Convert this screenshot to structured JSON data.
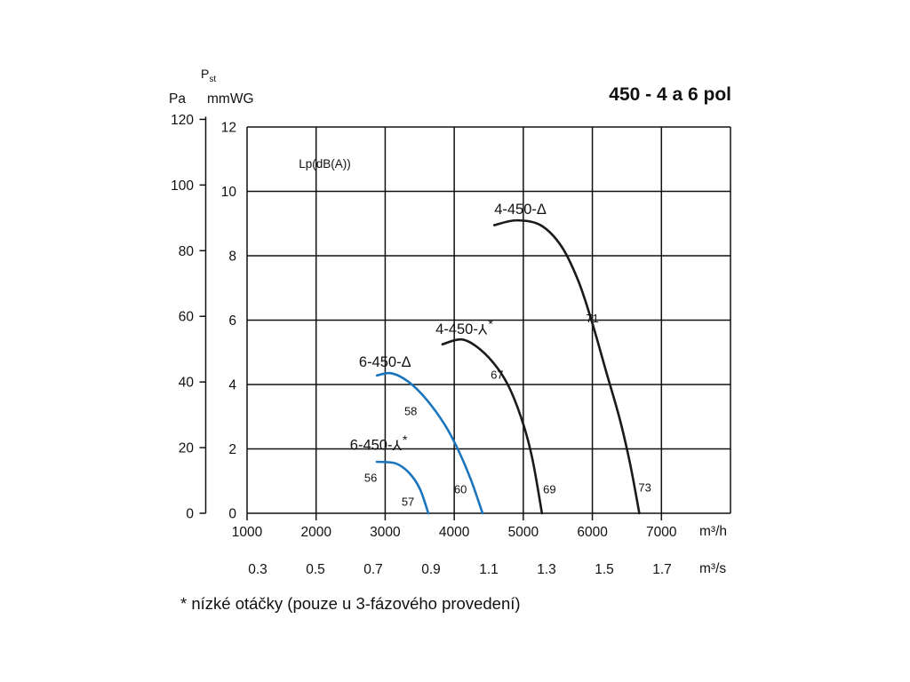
{
  "title": "450 - 4 a 6 pol",
  "footnote": "* nízké otáčky (pouze u 3-fázového provedení)",
  "axis_headers": {
    "pst_main": "P",
    "pst_sub": "st",
    "left_unit_pa": "Pa",
    "left_unit_mmwg": "mmWG",
    "x_unit_m3h": "m³/h",
    "x_unit_m3s": "m³/s"
  },
  "chart_data": {
    "type": "line",
    "title": "450 - 4 a 6 pol",
    "description": "Fan performance curves: static pressure vs air flow for models 4-450 and 6-450 in delta and star (low speed) wiring, with sound level labels in dB(A).",
    "grid": true,
    "x_axis": {
      "label_primary": "m³/h",
      "ticks_m3h": [
        1000,
        2000,
        3000,
        4000,
        5000,
        6000,
        7000
      ],
      "label_secondary": "m³/s",
      "ticks_m3s": [
        "0.3",
        "0.5",
        "0.7",
        "0.9",
        "1.1",
        "1.3",
        "1.5",
        "1.7"
      ],
      "range_m3h": [
        1000,
        8000
      ]
    },
    "y_axis": {
      "label_pst": "Pst",
      "label_pa": "Pa",
      "ticks_pa": [
        0,
        20,
        40,
        60,
        80,
        100,
        120
      ],
      "label_mmwg": "mmWG",
      "ticks_mmwg": [
        0,
        2,
        4,
        6,
        8,
        10,
        12
      ],
      "range_mmwg": [
        0,
        12
      ]
    },
    "noise_annotation": {
      "text": "Lp(dB(A))",
      "m3h": 1750,
      "mmwg": 10.73
    },
    "colors": {
      "black_series": "#1a1a1a",
      "blue_series": "#1b75bc"
    },
    "series": [
      {
        "name": "4-450-Δ",
        "label": {
          "prefix": "4-450-",
          "symbol": "delta",
          "star": false,
          "m3h": 4580,
          "mmwg": 9.3
        },
        "color_key": "black_series",
        "points": [
          [
            4580,
            8.95
          ],
          [
            4900,
            9.1
          ],
          [
            5250,
            8.95
          ],
          [
            5550,
            8.3
          ],
          [
            5800,
            7.2
          ],
          [
            6000,
            5.9
          ],
          [
            6200,
            4.4
          ],
          [
            6400,
            2.9
          ],
          [
            6550,
            1.5
          ],
          [
            6680,
            0
          ]
        ]
      },
      {
        "name": "4-450-Y*",
        "label": {
          "prefix": "4-450-",
          "symbol": "wye",
          "star": true,
          "m3h": 3730,
          "mmwg": 5.57
        },
        "color_key": "black_series",
        "points": [
          [
            3830,
            5.25
          ],
          [
            4110,
            5.4
          ],
          [
            4370,
            5.1
          ],
          [
            4630,
            4.5
          ],
          [
            4820,
            3.8
          ],
          [
            5010,
            2.7
          ],
          [
            5140,
            1.6
          ],
          [
            5270,
            0
          ]
        ]
      },
      {
        "name": "6-450-Δ",
        "label": {
          "prefix": "6-450-",
          "symbol": "delta",
          "star": false,
          "m3h": 2620,
          "mmwg": 4.55
        },
        "color_key": "blue_series",
        "points": [
          [
            2880,
            4.28
          ],
          [
            3090,
            4.35
          ],
          [
            3340,
            4.08
          ],
          [
            3600,
            3.53
          ],
          [
            3860,
            2.76
          ],
          [
            4050,
            2.0
          ],
          [
            4240,
            1.05
          ],
          [
            4410,
            0
          ]
        ]
      },
      {
        "name": "6-450-Y*",
        "label": {
          "prefix": "6-450-",
          "symbol": "wye",
          "star": true,
          "m3h": 2490,
          "mmwg": 1.97
        },
        "color_key": "blue_series",
        "points": [
          [
            2880,
            1.6
          ],
          [
            3150,
            1.55
          ],
          [
            3340,
            1.27
          ],
          [
            3500,
            0.77
          ],
          [
            3625,
            0
          ]
        ]
      }
    ],
    "noise_labels_db": [
      {
        "text": "71",
        "m3h": 6000,
        "mmwg": 6.05
      },
      {
        "text": "67",
        "m3h": 4620,
        "mmwg": 4.3
      },
      {
        "text": "58",
        "m3h": 3370,
        "mmwg": 3.17
      },
      {
        "text": "56",
        "m3h": 2790,
        "mmwg": 1.1
      },
      {
        "text": "57",
        "m3h": 3330,
        "mmwg": 0.36
      },
      {
        "text": "60",
        "m3h": 4090,
        "mmwg": 0.74
      },
      {
        "text": "69",
        "m3h": 5380,
        "mmwg": 0.74
      },
      {
        "text": "73",
        "m3h": 6760,
        "mmwg": 0.8
      }
    ]
  }
}
